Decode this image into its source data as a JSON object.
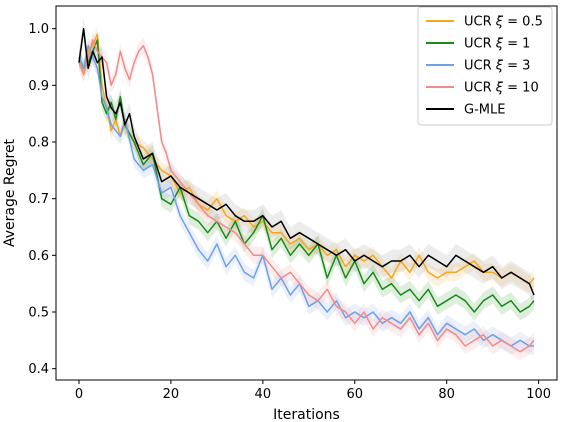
{
  "chart_data": {
    "type": "line",
    "xlabel": "Iterations",
    "ylabel": "Average Regret",
    "xlim": [
      -5,
      104
    ],
    "ylim": [
      0.38,
      1.04
    ],
    "xticks": [
      0,
      20,
      40,
      60,
      80,
      100
    ],
    "yticks": [
      0.4,
      0.5,
      0.6,
      0.7,
      0.8,
      0.9,
      1.0
    ],
    "xtick_labels": [
      "0",
      "20",
      "40",
      "60",
      "80",
      "100"
    ],
    "ytick_labels": [
      "0.4",
      "0.5",
      "0.6",
      "0.7",
      "0.8",
      "0.9",
      "1.0"
    ],
    "grid": false,
    "legend_position": "top-right",
    "series": [
      {
        "name": "UCR ξ = 0.5",
        "legend_prefix": "UCR ",
        "legend_symbol": "ξ",
        "legend_suffix": " = 0.5",
        "color": "#f5a623",
        "band_color": "#f5a623",
        "x": [
          0,
          1,
          2,
          3,
          4,
          5,
          6,
          7,
          8,
          9,
          10,
          12,
          14,
          16,
          18,
          20,
          22,
          24,
          26,
          28,
          30,
          32,
          34,
          36,
          38,
          40,
          42,
          44,
          46,
          48,
          50,
          52,
          54,
          56,
          58,
          60,
          62,
          64,
          66,
          68,
          70,
          72,
          74,
          76,
          78,
          80,
          82,
          84,
          86,
          88,
          90,
          92,
          94,
          96,
          98,
          99
        ],
        "y": [
          0.95,
          0.92,
          0.96,
          0.97,
          0.99,
          0.9,
          0.86,
          0.82,
          0.84,
          0.81,
          0.83,
          0.8,
          0.79,
          0.77,
          0.75,
          0.74,
          0.71,
          0.72,
          0.69,
          0.68,
          0.7,
          0.67,
          0.66,
          0.67,
          0.65,
          0.66,
          0.64,
          0.64,
          0.62,
          0.63,
          0.61,
          0.62,
          0.6,
          0.61,
          0.58,
          0.6,
          0.59,
          0.6,
          0.58,
          0.56,
          0.59,
          0.57,
          0.6,
          0.57,
          0.56,
          0.57,
          0.57,
          0.58,
          0.59,
          0.57,
          0.57,
          0.56,
          0.57,
          0.56,
          0.55,
          0.56
        ],
        "band": 0.015
      },
      {
        "name": "UCR ξ = 1",
        "legend_prefix": "UCR ",
        "legend_symbol": "ξ",
        "legend_suffix": " = 1",
        "color": "#1a8a1a",
        "band_color": "#1a8a1a",
        "x": [
          0,
          1,
          2,
          3,
          4,
          5,
          6,
          7,
          8,
          9,
          10,
          12,
          14,
          16,
          18,
          20,
          22,
          24,
          26,
          28,
          30,
          32,
          34,
          36,
          38,
          40,
          42,
          44,
          46,
          48,
          50,
          52,
          54,
          56,
          58,
          60,
          62,
          64,
          66,
          68,
          70,
          72,
          74,
          76,
          78,
          80,
          82,
          84,
          86,
          88,
          90,
          92,
          94,
          96,
          98,
          99
        ],
        "y": [
          0.95,
          0.93,
          0.94,
          0.96,
          0.98,
          0.87,
          0.85,
          0.87,
          0.84,
          0.88,
          0.83,
          0.8,
          0.76,
          0.78,
          0.7,
          0.69,
          0.72,
          0.67,
          0.66,
          0.64,
          0.66,
          0.63,
          0.66,
          0.62,
          0.64,
          0.67,
          0.61,
          0.63,
          0.6,
          0.62,
          0.6,
          0.62,
          0.56,
          0.6,
          0.56,
          0.59,
          0.55,
          0.57,
          0.54,
          0.55,
          0.53,
          0.54,
          0.52,
          0.54,
          0.51,
          0.52,
          0.53,
          0.52,
          0.5,
          0.52,
          0.53,
          0.51,
          0.52,
          0.5,
          0.51,
          0.52
        ],
        "band": 0.015
      },
      {
        "name": "UCR ξ = 3",
        "legend_prefix": "UCR ",
        "legend_symbol": "ξ",
        "legend_suffix": " = 3",
        "color": "#6fa0e8",
        "band_color": "#6fa0e8",
        "x": [
          0,
          1,
          2,
          3,
          4,
          5,
          6,
          7,
          8,
          9,
          10,
          12,
          14,
          16,
          18,
          20,
          22,
          24,
          26,
          28,
          30,
          32,
          34,
          36,
          38,
          40,
          42,
          44,
          46,
          48,
          50,
          52,
          54,
          56,
          58,
          60,
          62,
          64,
          66,
          68,
          70,
          72,
          74,
          76,
          78,
          80,
          82,
          84,
          86,
          88,
          90,
          92,
          94,
          96,
          98,
          99
        ],
        "y": [
          0.95,
          0.93,
          0.97,
          0.95,
          0.93,
          0.88,
          0.86,
          0.83,
          0.82,
          0.81,
          0.84,
          0.77,
          0.75,
          0.76,
          0.71,
          0.72,
          0.67,
          0.64,
          0.61,
          0.59,
          0.62,
          0.58,
          0.6,
          0.57,
          0.56,
          0.6,
          0.54,
          0.56,
          0.53,
          0.55,
          0.51,
          0.52,
          0.5,
          0.52,
          0.49,
          0.5,
          0.49,
          0.5,
          0.48,
          0.49,
          0.48,
          0.5,
          0.47,
          0.49,
          0.46,
          0.48,
          0.47,
          0.46,
          0.47,
          0.45,
          0.46,
          0.45,
          0.44,
          0.45,
          0.44,
          0.44
        ],
        "band": 0.015
      },
      {
        "name": "UCR ξ = 10",
        "legend_prefix": "UCR ",
        "legend_symbol": "ξ",
        "legend_suffix": " = 10",
        "color": "#f08c8c",
        "band_color": "#f08c8c",
        "x": [
          0,
          1,
          2,
          3,
          4,
          5,
          6,
          7,
          8,
          9,
          10,
          11,
          12,
          13,
          14,
          15,
          16,
          17,
          18,
          19,
          20,
          22,
          24,
          26,
          28,
          30,
          32,
          34,
          36,
          38,
          40,
          42,
          44,
          46,
          48,
          50,
          52,
          54,
          56,
          58,
          60,
          62,
          64,
          66,
          68,
          70,
          72,
          74,
          76,
          78,
          80,
          82,
          84,
          86,
          88,
          90,
          92,
          94,
          96,
          98,
          99
        ],
        "y": [
          0.94,
          0.92,
          0.95,
          0.98,
          0.96,
          0.95,
          0.94,
          0.9,
          0.92,
          0.96,
          0.93,
          0.91,
          0.94,
          0.96,
          0.97,
          0.95,
          0.92,
          0.86,
          0.8,
          0.78,
          0.75,
          0.73,
          0.71,
          0.69,
          0.67,
          0.66,
          0.65,
          0.64,
          0.62,
          0.6,
          0.6,
          0.58,
          0.56,
          0.57,
          0.55,
          0.53,
          0.52,
          0.54,
          0.51,
          0.5,
          0.48,
          0.5,
          0.47,
          0.49,
          0.48,
          0.47,
          0.49,
          0.46,
          0.48,
          0.45,
          0.47,
          0.46,
          0.44,
          0.45,
          0.46,
          0.44,
          0.45,
          0.44,
          0.43,
          0.44,
          0.45
        ],
        "band": 0.015
      },
      {
        "name": "G-MLE",
        "legend_prefix": "G-MLE",
        "legend_symbol": "",
        "legend_suffix": "",
        "color": "#000000",
        "band_color": "#7f7f7f",
        "x": [
          0,
          1,
          2,
          3,
          4,
          5,
          6,
          7,
          8,
          9,
          10,
          11,
          12,
          14,
          16,
          18,
          20,
          22,
          24,
          26,
          28,
          30,
          32,
          34,
          36,
          38,
          40,
          42,
          44,
          46,
          48,
          50,
          52,
          54,
          56,
          58,
          60,
          62,
          64,
          66,
          68,
          70,
          72,
          74,
          76,
          78,
          80,
          82,
          84,
          86,
          88,
          90,
          92,
          94,
          96,
          98,
          99
        ],
        "y": [
          0.94,
          1.0,
          0.93,
          0.96,
          0.94,
          0.95,
          0.88,
          0.86,
          0.85,
          0.87,
          0.83,
          0.85,
          0.81,
          0.77,
          0.78,
          0.73,
          0.74,
          0.72,
          0.71,
          0.7,
          0.69,
          0.68,
          0.69,
          0.67,
          0.66,
          0.66,
          0.67,
          0.65,
          0.66,
          0.63,
          0.64,
          0.63,
          0.62,
          0.61,
          0.6,
          0.61,
          0.59,
          0.6,
          0.59,
          0.58,
          0.59,
          0.59,
          0.6,
          0.58,
          0.6,
          0.59,
          0.58,
          0.6,
          0.59,
          0.58,
          0.57,
          0.58,
          0.56,
          0.57,
          0.56,
          0.55,
          0.53
        ],
        "band": 0.02
      }
    ]
  }
}
